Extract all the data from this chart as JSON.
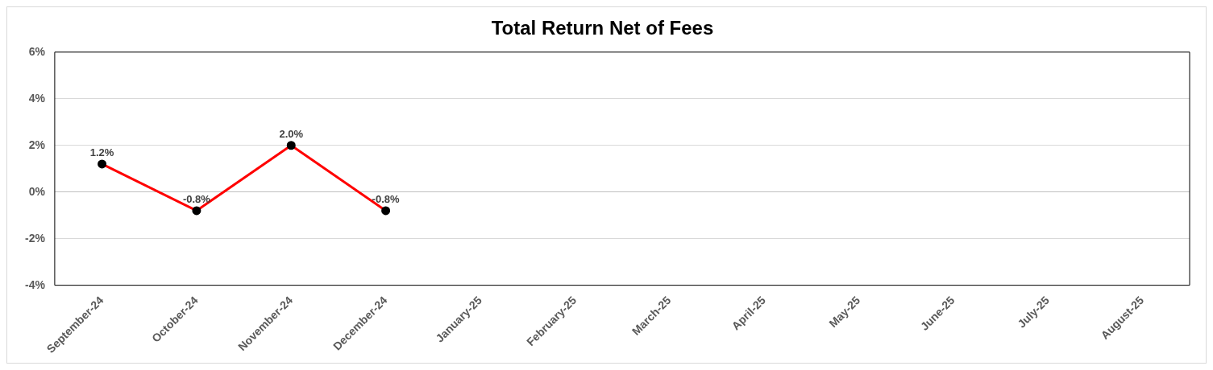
{
  "chart_data": {
    "type": "line",
    "title": "Total Return Net of Fees",
    "categories": [
      "September-24",
      "October-24",
      "November-24",
      "December-24",
      "January-25",
      "February-25",
      "March-25",
      "April-25",
      "May-25",
      "June-25",
      "July-25",
      "August-25"
    ],
    "series": [
      {
        "color": "#ff0000",
        "values": [
          1.2,
          -0.8,
          2.0,
          -0.8,
          null,
          null,
          null,
          null,
          null,
          null,
          null,
          null
        ],
        "value_labels": [
          "1.2%",
          "-0.8%",
          "2.0%",
          "-0.8%",
          null,
          null,
          null,
          null,
          null,
          null,
          null,
          null
        ]
      }
    ],
    "ylim": [
      -4,
      6
    ],
    "yticks": [
      {
        "value": -4,
        "label": "-4%"
      },
      {
        "value": -2,
        "label": "-2%"
      },
      {
        "value": 0,
        "label": "0%"
      },
      {
        "value": 2,
        "label": "2%"
      },
      {
        "value": 4,
        "label": "4%"
      },
      {
        "value": 6,
        "label": "6%"
      }
    ],
    "grid": "y",
    "legend": false,
    "marker": "circle",
    "line_style": "solid"
  }
}
